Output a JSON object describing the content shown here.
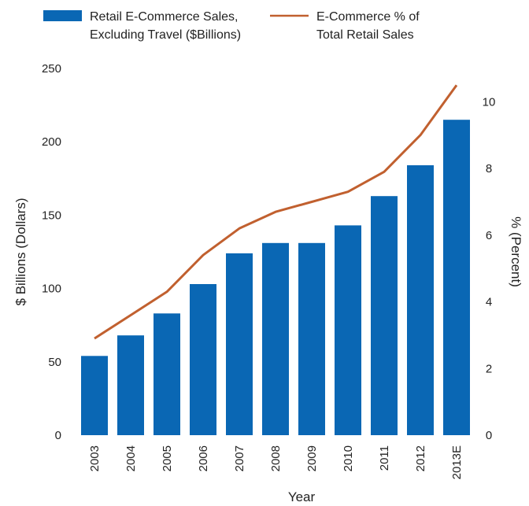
{
  "colors": {
    "bar": "#0a67b4",
    "line": "#c1602f"
  },
  "legend": [
    {
      "swatch": "bar",
      "line1": "Retail E-Commerce Sales,",
      "line2": "Excluding Travel ($Billions)"
    },
    {
      "swatch": "line",
      "line1": "E-Commerce % of",
      "line2": "Total Retail Sales"
    }
  ],
  "chart_data": {
    "type": "bar",
    "categories": [
      "2003",
      "2004",
      "2005",
      "2006",
      "2007",
      "2008",
      "2009",
      "2010",
      "2011",
      "2012",
      "2013E"
    ],
    "series": [
      {
        "name": "Retail E-Commerce Sales, Excluding Travel ($Billions)",
        "type": "bar",
        "axis": "left",
        "values": [
          54,
          68,
          83,
          103,
          124,
          131,
          131,
          143,
          163,
          184,
          215
        ]
      },
      {
        "name": "E-Commerce % of Total Retail Sales",
        "type": "line",
        "axis": "right",
        "values": [
          2.9,
          3.6,
          4.3,
          5.4,
          6.2,
          6.7,
          7.0,
          7.3,
          7.9,
          9.0,
          10.5
        ]
      }
    ],
    "xlabel": "Year",
    "ylabel": "$ Billions (Dollars)",
    "y2label": "% (Percent)",
    "ylim": [
      0,
      250
    ],
    "y2lim": [
      0,
      11
    ],
    "yticks": [
      0,
      50,
      100,
      150,
      200,
      250
    ],
    "y2ticks": [
      0,
      2,
      4,
      6,
      8,
      10
    ],
    "grid": false,
    "legend_position": "top"
  }
}
